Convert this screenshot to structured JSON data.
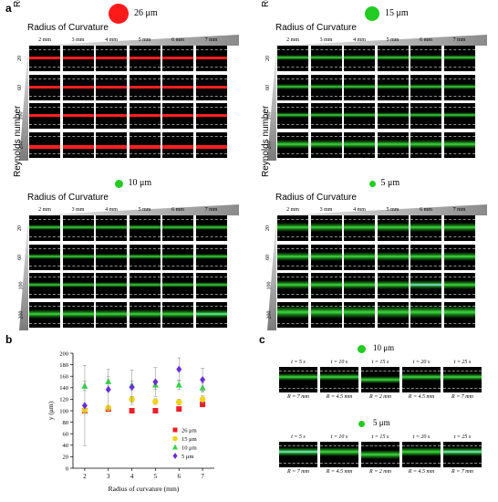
{
  "panel_a": {
    "letter": "a",
    "radius_label": "Radius of Curvature",
    "reynolds_label": "Reynolds number",
    "columns": [
      "2 mm",
      "3 mm",
      "4 mm",
      "5 mm",
      "6 mm",
      "7 mm"
    ],
    "rows": [
      "20",
      "60",
      "100",
      "200"
    ],
    "subpanels": [
      {
        "size": "26 μm",
        "color": "#ff1a1a",
        "band": "red"
      },
      {
        "size": "15 μm",
        "color": "#22cc22",
        "band": "green"
      },
      {
        "size": "10 μm",
        "color": "#22cc22",
        "band": "green"
      },
      {
        "size": "5 μm",
        "color": "#22cc22",
        "band": "green"
      }
    ]
  },
  "panel_b": {
    "letter": "b",
    "chart_data": {
      "type": "scatter",
      "xlabel": "Radius of curvature (mm)",
      "ylabel": "y (μm)",
      "xlim": [
        1.5,
        7.5
      ],
      "ylim": [
        0,
        200
      ],
      "xticks": [
        2,
        3,
        4,
        5,
        6,
        7
      ],
      "yticks": [
        0,
        20,
        40,
        60,
        80,
        100,
        120,
        140,
        160,
        180,
        200
      ],
      "legend_position": "bottom-right",
      "series": [
        {
          "name": "26 μm",
          "color": "#e8202a",
          "marker": "square",
          "x": [
            2,
            3,
            4,
            5,
            6,
            7
          ],
          "y": [
            100,
            103,
            100,
            100,
            103,
            111
          ],
          "err": [
            3,
            3,
            3,
            3,
            3,
            3
          ]
        },
        {
          "name": "15 μm",
          "color": "#f2d21c",
          "marker": "circle",
          "x": [
            2,
            3,
            4,
            5,
            6,
            7
          ],
          "y": [
            101,
            105,
            120,
            116,
            115,
            120
          ],
          "err": [
            4,
            4,
            5,
            5,
            5,
            6
          ]
        },
        {
          "name": "10 μm",
          "color": "#38d34a",
          "marker": "triangle",
          "x": [
            2,
            3,
            4,
            5,
            6,
            7
          ],
          "y": [
            143,
            151,
            144,
            145,
            145,
            140
          ],
          "err": [
            8,
            8,
            8,
            8,
            8,
            8
          ]
        },
        {
          "name": "5 μm",
          "color": "#6a2fd6",
          "marker": "diamond",
          "x": [
            2,
            3,
            4,
            5,
            6,
            7
          ],
          "y": [
            109,
            137,
            141,
            150,
            172,
            154
          ],
          "err": [
            70,
            35,
            30,
            25,
            20,
            20
          ]
        }
      ]
    }
  },
  "panel_c": {
    "letter": "c",
    "times": [
      "t = 5 s",
      "t = 10 s",
      "t = 15 s",
      "t = 20 s",
      "t = 25 s"
    ],
    "radii": [
      "R = 7 mm",
      "R = 4.5 mm",
      "R = 2 mm",
      "R = 4.5 mm",
      "R = 7 mm"
    ],
    "groups": [
      {
        "size": "10 μm",
        "color": "#22cc22"
      },
      {
        "size": "5 μm",
        "color": "#22cc22"
      }
    ]
  }
}
